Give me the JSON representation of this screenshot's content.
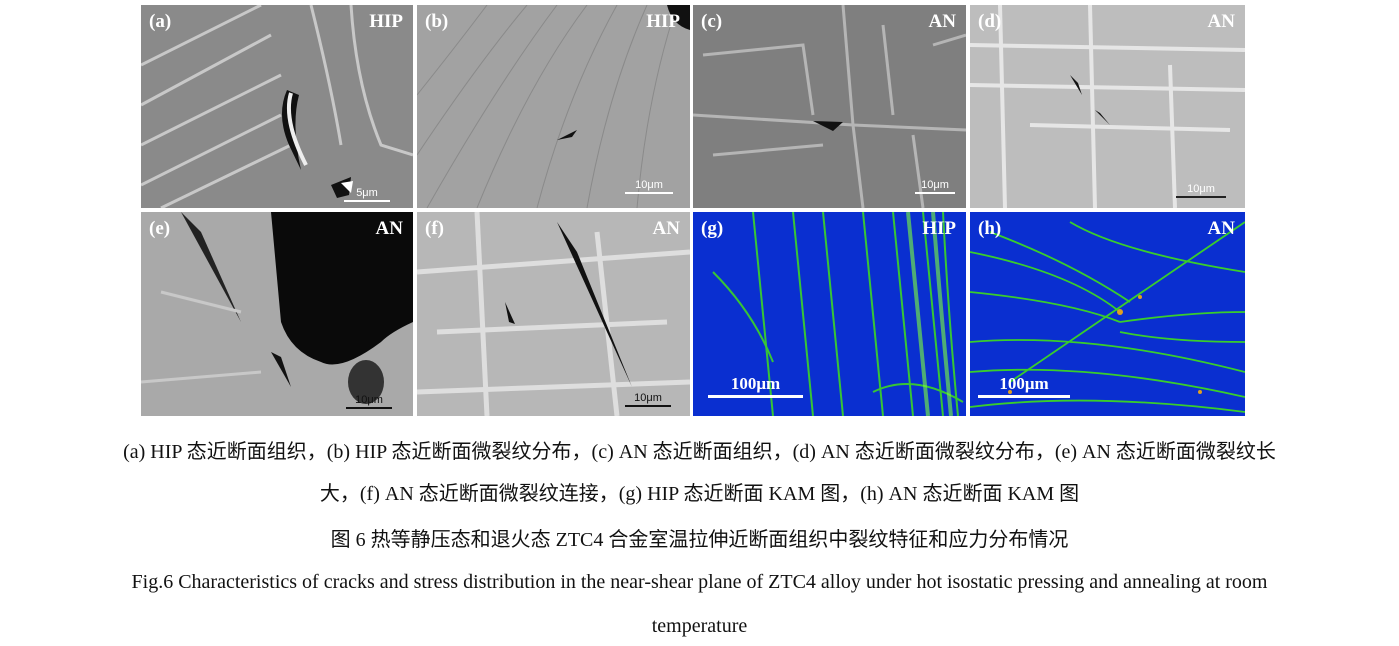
{
  "panels": [
    {
      "label": "(a)",
      "tag": "HIP",
      "scale": "5μm",
      "kind": "sem"
    },
    {
      "label": "(b)",
      "tag": "HIP",
      "scale": "10μm",
      "kind": "sem"
    },
    {
      "label": "(c)",
      "tag": "AN",
      "scale": "10μm",
      "kind": "sem"
    },
    {
      "label": "(d)",
      "tag": "AN",
      "scale": "10μm",
      "kind": "sem"
    },
    {
      "label": "(e)",
      "tag": "AN",
      "scale": "10μm",
      "kind": "sem"
    },
    {
      "label": "(f)",
      "tag": "AN",
      "scale": "10μm",
      "kind": "sem"
    },
    {
      "label": "(g)",
      "tag": "HIP",
      "scale": "100μm",
      "kind": "kam"
    },
    {
      "label": "(h)",
      "tag": "AN",
      "scale": "100μm",
      "kind": "kam"
    }
  ],
  "caption": {
    "line1": "(a) HIP 态近断面组织，(b) HIP 态近断面微裂纹分布，(c) AN 态近断面组织，(d) AN 态近断面微裂纹分布，(e) AN 态近断面微裂纹长",
    "line2": "大，(f) AN 态近断面微裂纹连接，(g) HIP 态近断面 KAM 图，(h) AN 态近断面 KAM 图",
    "title_cn": "图 6  热等静压态和退火态 ZTC4 合金室温拉伸近断面组织中裂纹特征和应力分布情况",
    "title_en_1": "Fig.6 Characteristics of cracks and stress distribution in the near-shear plane of ZTC4 alloy under hot isostatic pressing and annealing at room",
    "title_en_2": "temperature"
  },
  "colors": {
    "kam_low": "#0a2fd0",
    "kam_mid": "#3fe01a",
    "kam_high": "#e0a020",
    "sem_gray": "#8e8e8e"
  }
}
